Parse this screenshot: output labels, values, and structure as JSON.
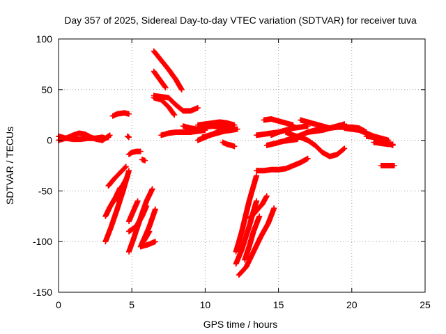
{
  "chart_data": {
    "type": "scatter",
    "title": "Day 357 of 2025, Sidereal Day-to-day VTEC variation (SDTVAR) for receiver tuva",
    "xlabel": "GPS time / hours",
    "ylabel": "SDTVAR / TECUs",
    "xlim": [
      0,
      25
    ],
    "ylim": [
      -150,
      100
    ],
    "x_ticks": [
      0,
      5,
      10,
      15,
      20,
      25
    ],
    "x_tick_labels": [
      "0",
      "5",
      "10",
      "15",
      "20",
      "25"
    ],
    "y_ticks": [
      -150,
      -100,
      -50,
      0,
      50,
      100
    ],
    "y_tick_labels": [
      "-150",
      "-100",
      "-50",
      "0",
      "50",
      "100"
    ],
    "grid": true,
    "marker": "plus",
    "color": "#ff0000",
    "series": [
      {
        "name": "seg01",
        "x": [
          0.0,
          0.5,
          1.0,
          1.4,
          1.8,
          2.2,
          2.6,
          3.0
        ],
        "y": [
          0,
          2,
          5,
          7,
          6,
          3,
          1,
          0
        ]
      },
      {
        "name": "seg02",
        "x": [
          0.0,
          0.5,
          1.0,
          1.5,
          2.0,
          2.5,
          3.0,
          3.2,
          3.4
        ],
        "y": [
          4,
          2,
          1,
          1,
          2,
          2,
          3,
          2,
          3
        ]
      },
      {
        "name": "seg03",
        "x": [
          3.0,
          3.3,
          3.5
        ],
        "y": [
          0,
          3,
          5
        ]
      },
      {
        "name": "seg04",
        "x": [
          3.7,
          4.0,
          4.5,
          4.8
        ],
        "y": [
          24,
          26,
          27,
          26
        ]
      },
      {
        "name": "seg05",
        "x": [
          4.7,
          4.8
        ],
        "y": [
          4,
          3
        ]
      },
      {
        "name": "seg06",
        "x": [
          4.8,
          5.0,
          5.3,
          5.6
        ],
        "y": [
          -14,
          -12,
          -11,
          -11
        ]
      },
      {
        "name": "seg07",
        "x": [
          5.7,
          5.9
        ],
        "y": [
          -19,
          -20
        ]
      },
      {
        "name": "seg08",
        "x": [
          3.4,
          3.8,
          4.2,
          4.6
        ],
        "y": [
          -45,
          -38,
          -32,
          -26
        ]
      },
      {
        "name": "seg09",
        "x": [
          3.2,
          3.6,
          4.0,
          4.4,
          4.8
        ],
        "y": [
          -100,
          -85,
          -68,
          -50,
          -30
        ]
      },
      {
        "name": "seg10",
        "x": [
          3.2,
          3.5,
          3.9,
          4.2
        ],
        "y": [
          -75,
          -66,
          -56,
          -47
        ]
      },
      {
        "name": "seg11",
        "x": [
          3.8,
          4.1,
          4.4,
          4.7
        ],
        "y": [
          -60,
          -52,
          -44,
          -36
        ]
      },
      {
        "name": "seg12",
        "x": [
          4.8,
          5.1,
          5.4
        ],
        "y": [
          -80,
          -70,
          -60
        ]
      },
      {
        "name": "seg13",
        "x": [
          4.8,
          5.1,
          5.4,
          5.7,
          6.0,
          6.4
        ],
        "y": [
          -110,
          -98,
          -85,
          -72,
          -60,
          -48
        ]
      },
      {
        "name": "seg14",
        "x": [
          4.8,
          5.0,
          5.3,
          5.7,
          6.0
        ],
        "y": [
          -90,
          -88,
          -85,
          -75,
          -65
        ]
      },
      {
        "name": "seg15",
        "x": [
          5.6,
          5.9,
          6.2,
          6.6
        ],
        "y": [
          -105,
          -95,
          -85,
          -68
        ]
      },
      {
        "name": "seg16",
        "x": [
          5.6,
          6.1,
          6.6
        ],
        "y": [
          -105,
          -103,
          -100
        ]
      },
      {
        "name": "seg17",
        "x": [
          5.8,
          6.0,
          6.2
        ],
        "y": [
          -100,
          -95,
          -90
        ]
      },
      {
        "name": "seg18",
        "x": [
          6.5,
          7.0,
          7.5,
          8.0,
          8.4
        ],
        "y": [
          88,
          79,
          70,
          60,
          50
        ]
      },
      {
        "name": "seg19",
        "x": [
          6.5,
          6.9,
          7.3
        ],
        "y": [
          68,
          60,
          52
        ]
      },
      {
        "name": "seg20",
        "x": [
          6.5,
          7.0,
          7.5,
          7.9
        ],
        "y": [
          42,
          40,
          33,
          25
        ]
      },
      {
        "name": "seg21",
        "x": [
          6.5,
          7.0,
          7.5,
          8.0,
          8.5,
          9.0,
          9.5
        ],
        "y": [
          44,
          43,
          42,
          35,
          29,
          29,
          32
        ]
      },
      {
        "name": "seg22",
        "x": [
          7.0,
          7.5,
          8.0,
          8.5,
          9.0,
          9.5,
          10.0
        ],
        "y": [
          5,
          7,
          8,
          8,
          8,
          9,
          10
        ]
      },
      {
        "name": "seg23",
        "x": [
          8.5,
          9.0,
          9.5,
          10.0,
          10.5,
          11.0,
          11.5,
          12.0
        ],
        "y": [
          14,
          12,
          11,
          13,
          14,
          13,
          12,
          13
        ]
      },
      {
        "name": "seg24",
        "x": [
          9.5,
          10.0,
          10.5,
          11.0,
          11.5,
          12.0
        ],
        "y": [
          15,
          16,
          17,
          18,
          17,
          15
        ]
      },
      {
        "name": "seg25",
        "x": [
          9.5,
          10.0,
          10.5,
          11.0,
          11.5,
          12.0
        ],
        "y": [
          0,
          3,
          6,
          9,
          11,
          12
        ]
      },
      {
        "name": "seg26",
        "x": [
          9.8,
          10.3,
          10.8,
          11.3,
          11.8,
          12.2
        ],
        "y": [
          3,
          5,
          7,
          9,
          10,
          11
        ]
      },
      {
        "name": "seg27",
        "x": [
          11.2,
          11.5,
          11.8,
          12.0
        ],
        "y": [
          -2,
          -4,
          -5,
          -6
        ]
      },
      {
        "name": "seg28",
        "x": [
          12.1,
          12.5,
          13.0,
          13.5
        ],
        "y": [
          -122,
          -108,
          -85,
          -60
        ]
      },
      {
        "name": "seg29",
        "x": [
          12.1,
          12.5,
          13.0,
          13.5
        ],
        "y": [
          -110,
          -90,
          -60,
          -35
        ]
      },
      {
        "name": "seg30",
        "x": [
          12.3,
          12.8,
          13.3,
          13.8,
          14.3,
          14.7
        ],
        "y": [
          -133,
          -125,
          -110,
          -95,
          -82,
          -67
        ]
      },
      {
        "name": "seg31",
        "x": [
          12.7,
          13.0,
          13.3,
          13.7
        ],
        "y": [
          -118,
          -105,
          -90,
          -75
        ]
      },
      {
        "name": "seg32",
        "x": [
          13.0,
          13.3,
          13.6,
          13.9,
          14.2
        ],
        "y": [
          -77,
          -73,
          -68,
          -63,
          -55
        ]
      },
      {
        "name": "seg33",
        "x": [
          13.5,
          14.0,
          14.5,
          15.0,
          15.5,
          16.0,
          16.5,
          17.0
        ],
        "y": [
          -30,
          -30,
          -29,
          -29,
          -28,
          -25,
          -22,
          -18
        ]
      },
      {
        "name": "seg34",
        "x": [
          13.5,
          14.0,
          14.5,
          15.0
        ],
        "y": [
          5,
          6,
          7,
          8
        ]
      },
      {
        "name": "seg35",
        "x": [
          14.0,
          14.5,
          15.0,
          15.5,
          16.0
        ],
        "y": [
          20,
          21,
          19,
          17,
          15
        ]
      },
      {
        "name": "seg36",
        "x": [
          14.2,
          14.8,
          15.3,
          15.8,
          16.3
        ],
        "y": [
          -5,
          -3,
          -1,
          0,
          1
        ]
      },
      {
        "name": "seg37",
        "x": [
          14.5,
          15.0,
          15.5,
          16.0,
          16.5,
          17.0
        ],
        "y": [
          5,
          8,
          10,
          12,
          13,
          14
        ]
      },
      {
        "name": "seg38",
        "x": [
          15.5,
          16.0,
          16.5,
          17.0,
          17.5,
          18.0,
          18.5,
          19.0,
          19.5
        ],
        "y": [
          8,
          5,
          3,
          0,
          -5,
          -12,
          -16,
          -14,
          -8
        ]
      },
      {
        "name": "seg39",
        "x": [
          15.5,
          16.0,
          16.5,
          17.0,
          17.5,
          18.0
        ],
        "y": [
          0,
          2,
          5,
          8,
          10,
          11
        ]
      },
      {
        "name": "seg40",
        "x": [
          16.5,
          17.0,
          17.5,
          18.0,
          18.5
        ],
        "y": [
          20,
          18,
          16,
          14,
          12
        ]
      },
      {
        "name": "seg41",
        "x": [
          17.0,
          17.5,
          18.0,
          18.5,
          19.0,
          19.5
        ],
        "y": [
          8,
          9,
          10,
          12,
          14,
          16
        ]
      },
      {
        "name": "seg42",
        "x": [
          18.0,
          18.5,
          19.0,
          19.5,
          20.0,
          20.5,
          21.0
        ],
        "y": [
          10,
          12,
          13,
          13,
          13,
          12,
          8
        ]
      },
      {
        "name": "seg43",
        "x": [
          19.5,
          20.0,
          20.5,
          21.0,
          21.5,
          22.0,
          22.5
        ],
        "y": [
          12,
          11,
          10,
          7,
          4,
          2,
          0
        ]
      },
      {
        "name": "seg44",
        "x": [
          21.0,
          21.5,
          22.0,
          22.5,
          22.8
        ],
        "y": [
          4,
          3,
          0,
          -3,
          -5
        ]
      },
      {
        "name": "seg45",
        "x": [
          21.5,
          22.0,
          22.5,
          22.8
        ],
        "y": [
          -2,
          -3,
          -4,
          -4
        ]
      },
      {
        "name": "seg46",
        "x": [
          22.0,
          22.3,
          22.6,
          22.9
        ],
        "y": [
          -25,
          -25,
          -25,
          -25
        ]
      }
    ]
  }
}
